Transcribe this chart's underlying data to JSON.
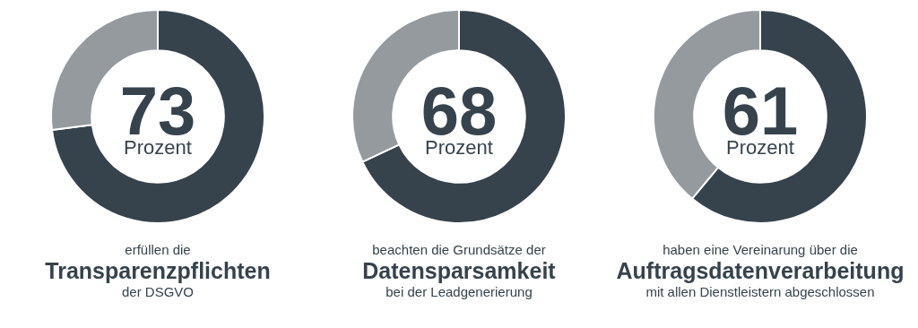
{
  "chart_data": [
    {
      "type": "donut",
      "categories": [
        null,
        null
      ],
      "values": [
        73,
        27
      ],
      "colors": [
        "#36434d",
        "#959a9f"
      ],
      "value_labels": [
        "73",
        null
      ],
      "subtitle": "Prozent",
      "title": "Transparenzpflichten",
      "annotations": [
        "erfüllen die",
        "der DSGVO"
      ]
    },
    {
      "type": "donut",
      "categories": [
        null,
        null
      ],
      "values": [
        68,
        32
      ],
      "colors": [
        "#36434d",
        "#959a9f"
      ],
      "value_labels": [
        "68",
        null
      ],
      "subtitle": "Prozent",
      "title": "Datensparsamkeit",
      "annotations": [
        "beachten die Grundsätze der",
        "bei der Leadgenerierung"
      ]
    },
    {
      "type": "donut",
      "categories": [
        null,
        null
      ],
      "values": [
        61,
        39
      ],
      "colors": [
        "#36434d",
        "#959a9f"
      ],
      "value_labels": [
        "61",
        null
      ],
      "subtitle": "Prozent",
      "title": "Auftragsdatenverarbeitung",
      "annotations": [
        "haben eine Vereinarung über die",
        "mit allen Dienstleistern abgeschlossen"
      ]
    }
  ]
}
